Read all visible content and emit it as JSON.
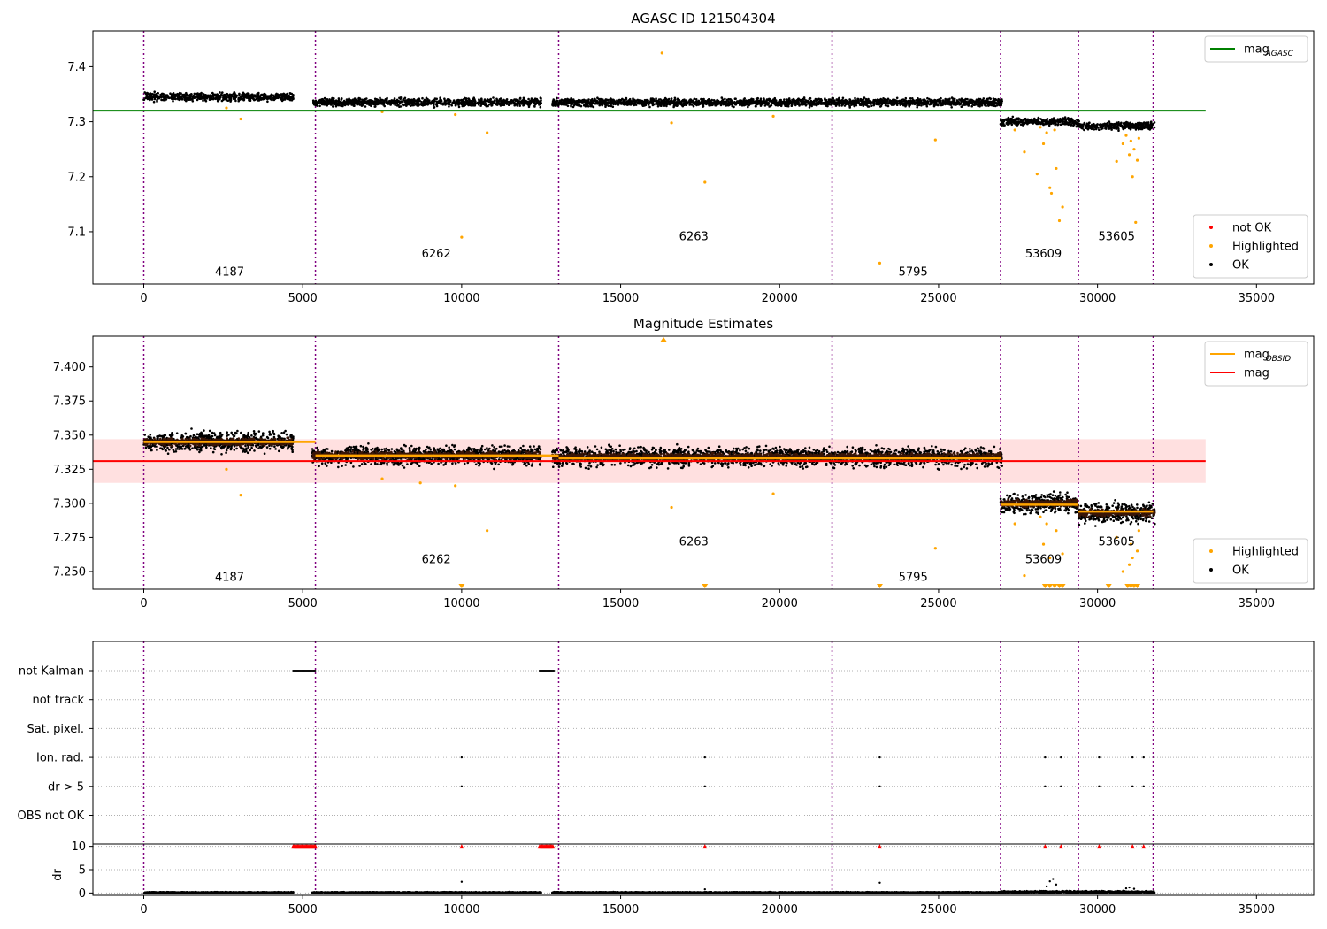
{
  "figure": {
    "title": "AGASC ID 121504304"
  },
  "chart_data": [
    {
      "type": "scatter",
      "title": "AGASC ID 121504304",
      "xlabel": "",
      "ylabel": "",
      "xlim": [
        -1600,
        36800
      ],
      "ylim": [
        7.005,
        7.465
      ],
      "xticks": [
        0,
        5000,
        10000,
        15000,
        20000,
        25000,
        30000,
        35000
      ],
      "yticks": [
        7.1,
        7.2,
        7.3,
        7.4
      ],
      "ytick_labels": [
        "7.1",
        "7.2",
        "7.3",
        "7.4"
      ],
      "obs_boundaries": [
        0,
        5400,
        13050,
        21650,
        26950,
        29400,
        31750
      ],
      "segment_labels": [
        {
          "text": "4187",
          "x": 2700,
          "y": 7.02
        },
        {
          "text": "6262",
          "x": 9200,
          "y": 7.053
        },
        {
          "text": "6263",
          "x": 17300,
          "y": 7.085
        },
        {
          "text": "5795",
          "x": 24200,
          "y": 7.02
        },
        {
          "text": "53609",
          "x": 28300,
          "y": 7.053
        },
        {
          "text": "53605",
          "x": 30600,
          "y": 7.085
        }
      ],
      "reference_line": {
        "name": "mag_AGASC",
        "value": 7.32,
        "x": [
          -1600,
          33400
        ],
        "color": "#008000"
      },
      "series": [
        {
          "name": "OK",
          "color": "#000000",
          "segments": [
            {
              "x": [
                0,
                4700
              ],
              "center": 7.345,
              "spread": 0.01
            },
            {
              "x": [
                5300,
                12500
              ],
              "center": 7.335,
              "spread": 0.01
            },
            {
              "x": [
                12850,
                21650
              ],
              "center": 7.335,
              "spread": 0.01
            },
            {
              "x": [
                21650,
                27000
              ],
              "center": 7.335,
              "spread": 0.01
            },
            {
              "x": [
                26950,
                29400
              ],
              "center": 7.3,
              "spread": 0.01
            },
            {
              "x": [
                29400,
                31800
              ],
              "center": 7.292,
              "spread": 0.01
            }
          ]
        },
        {
          "name": "Highlighted",
          "color": "#ffa500",
          "points": [
            [
              16300,
              7.425
            ],
            [
              16600,
              7.298
            ],
            [
              17650,
              7.19
            ],
            [
              10000,
              7.09
            ],
            [
              10800,
              7.28
            ],
            [
              23150,
              7.043
            ],
            [
              24900,
              7.267
            ],
            [
              3050,
              7.305
            ],
            [
              2600,
              7.325
            ],
            [
              19800,
              7.31
            ],
            [
              7500,
              7.318
            ],
            [
              9800,
              7.313
            ],
            [
              27700,
              7.245
            ],
            [
              28100,
              7.205
            ],
            [
              28300,
              7.26
            ],
            [
              28500,
              7.18
            ],
            [
              28550,
              7.17
            ],
            [
              28700,
              7.215
            ],
            [
              28800,
              7.12
            ],
            [
              28900,
              7.145
            ],
            [
              28400,
              7.28
            ],
            [
              28650,
              7.285
            ],
            [
              30600,
              7.228
            ],
            [
              31000,
              7.24
            ],
            [
              31100,
              7.2
            ],
            [
              31200,
              7.117
            ],
            [
              31150,
              7.25
            ],
            [
              30900,
              7.275
            ],
            [
              31250,
              7.23
            ],
            [
              31050,
              7.265
            ],
            [
              27400,
              7.285
            ],
            [
              28200,
              7.29
            ],
            [
              30800,
              7.26
            ],
            [
              31300,
              7.27
            ]
          ]
        },
        {
          "name": "not OK",
          "color": "#ff0000",
          "points": []
        }
      ],
      "legends": [
        {
          "position": "upper right",
          "entries": [
            {
              "label": "mag",
              "sub": "AGASC",
              "kind": "line",
              "color": "#008000"
            }
          ]
        },
        {
          "position": "lower right",
          "entries": [
            {
              "label": "not OK",
              "kind": "dot",
              "color": "#ff0000"
            },
            {
              "label": "Highlighted",
              "kind": "dot",
              "color": "#ffa500"
            },
            {
              "label": "OK",
              "kind": "dot",
              "color": "#000000"
            }
          ]
        }
      ]
    },
    {
      "type": "scatter",
      "title": "Magnitude Estimates",
      "xlabel": "",
      "ylabel": "",
      "xlim": [
        -1600,
        36800
      ],
      "ylim": [
        7.237,
        7.4225
      ],
      "xticks": [
        0,
        5000,
        10000,
        15000,
        20000,
        25000,
        30000,
        35000
      ],
      "yticks": [
        7.25,
        7.275,
        7.3,
        7.325,
        7.35,
        7.375,
        7.4
      ],
      "ytick_labels": [
        "7.250",
        "7.275",
        "7.300",
        "7.325",
        "7.350",
        "7.375",
        "7.400"
      ],
      "obs_boundaries": [
        0,
        5400,
        13050,
        21650,
        26950,
        29400,
        31750
      ],
      "segment_labels": [
        {
          "text": "4187",
          "x": 2700,
          "y": 7.243
        },
        {
          "text": "6262",
          "x": 9200,
          "y": 7.256
        },
        {
          "text": "6263",
          "x": 17300,
          "y": 7.269
        },
        {
          "text": "5795",
          "x": 24200,
          "y": 7.243
        },
        {
          "text": "53609",
          "x": 28300,
          "y": 7.256
        },
        {
          "text": "53605",
          "x": 30600,
          "y": 7.269
        }
      ],
      "mag": {
        "value": 7.331,
        "band": [
          7.315,
          7.347
        ],
        "x": [
          -1600,
          33400
        ],
        "color": "#ff0000"
      },
      "mag_obsid": [
        {
          "x": [
            0,
            5400
          ],
          "value": 7.345
        },
        {
          "x": [
            5400,
            13050
          ],
          "value": 7.335
        },
        {
          "x": [
            13050,
            21650
          ],
          "value": 7.333
        },
        {
          "x": [
            21650,
            26950
          ],
          "value": 7.333
        },
        {
          "x": [
            26950,
            29400
          ],
          "value": 7.299
        },
        {
          "x": [
            29400,
            31750
          ],
          "value": 7.294
        }
      ],
      "series": [
        {
          "name": "OK",
          "color": "#000000",
          "segments": [
            {
              "x": [
                0,
                4700
              ],
              "center": 7.345,
              "spread": 0.01
            },
            {
              "x": [
                5300,
                12500
              ],
              "center": 7.335,
              "spread": 0.01
            },
            {
              "x": [
                12850,
                21650
              ],
              "center": 7.334,
              "spread": 0.01
            },
            {
              "x": [
                21650,
                27000
              ],
              "center": 7.334,
              "spread": 0.01
            },
            {
              "x": [
                26950,
                29400
              ],
              "center": 7.3,
              "spread": 0.01
            },
            {
              "x": [
                29400,
                31800
              ],
              "center": 7.293,
              "spread": 0.01
            }
          ]
        },
        {
          "name": "Highlighted",
          "color": "#ffa500",
          "points": [
            [
              16600,
              7.297
            ],
            [
              10800,
              7.28
            ],
            [
              24900,
              7.267
            ],
            [
              3050,
              7.306
            ],
            [
              2600,
              7.325
            ],
            [
              19800,
              7.307
            ],
            [
              7500,
              7.318
            ],
            [
              9800,
              7.313
            ],
            [
              27700,
              7.247
            ],
            [
              28300,
              7.27
            ],
            [
              28500,
              7.26
            ],
            [
              28700,
              7.28
            ],
            [
              28900,
              7.263
            ],
            [
              28400,
              7.285
            ],
            [
              30600,
              7.275
            ],
            [
              31000,
              7.255
            ],
            [
              31100,
              7.26
            ],
            [
              31250,
              7.265
            ],
            [
              31050,
              7.27
            ],
            [
              27400,
              7.285
            ],
            [
              28200,
              7.29
            ],
            [
              30800,
              7.25
            ],
            [
              31300,
              7.28
            ],
            [
              8700,
              7.315
            ]
          ]
        }
      ],
      "offscale_markers": [
        {
          "x": 16350,
          "direction": "up"
        },
        {
          "x": 10000,
          "direction": "down"
        },
        {
          "x": 17650,
          "direction": "down"
        },
        {
          "x": 23150,
          "direction": "down"
        },
        {
          "x": 28350,
          "direction": "down"
        },
        {
          "x": 28500,
          "direction": "down"
        },
        {
          "x": 28650,
          "direction": "down"
        },
        {
          "x": 28800,
          "direction": "down"
        },
        {
          "x": 28900,
          "direction": "down"
        },
        {
          "x": 30350,
          "direction": "down"
        },
        {
          "x": 30950,
          "direction": "down"
        },
        {
          "x": 31050,
          "direction": "down"
        },
        {
          "x": 31150,
          "direction": "down"
        },
        {
          "x": 31250,
          "direction": "down"
        }
      ],
      "legends": [
        {
          "position": "upper right",
          "entries": [
            {
              "label": "mag",
              "sub": "OBSID",
              "kind": "line",
              "color": "#ffa500"
            },
            {
              "label": "mag",
              "sub": "",
              "kind": "line",
              "color": "#ff0000"
            }
          ]
        },
        {
          "position": "lower right",
          "entries": [
            {
              "label": "Highlighted",
              "kind": "dot",
              "color": "#ffa500"
            },
            {
              "label": "OK",
              "kind": "dot",
              "color": "#000000"
            }
          ]
        }
      ]
    },
    {
      "type": "scatter",
      "title": "",
      "xlabel": "",
      "ylabel": "",
      "xlim": [
        -1600,
        36800
      ],
      "xticks": [
        0,
        5000,
        10000,
        15000,
        20000,
        25000,
        30000,
        35000
      ],
      "obs_boundaries": [
        0,
        5400,
        13050,
        21650,
        26950,
        29400,
        31750
      ],
      "flag_rows": [
        "not Kalman",
        "not track",
        "Sat. pixel.",
        "Ion. rad.",
        "dr > 5",
        "OBS not OK"
      ],
      "flags": [
        {
          "row": "not Kalman",
          "x_ranges": [
            [
              4700,
              5400
            ],
            [
              12450,
              12900
            ]
          ],
          "x": []
        },
        {
          "row": "not track",
          "x_ranges": [],
          "x": []
        },
        {
          "row": "Sat. pixel.",
          "x_ranges": [],
          "x": []
        },
        {
          "row": "Ion. rad.",
          "x_ranges": [],
          "x": [
            10000,
            17650,
            23150,
            28350,
            28850,
            30050,
            31100,
            31450
          ]
        },
        {
          "row": "dr > 5",
          "x_ranges": [],
          "x": [
            10000,
            17650,
            23150,
            28350,
            28850,
            30050,
            31100,
            31450
          ]
        },
        {
          "row": "OBS not OK",
          "x_ranges": [],
          "x": []
        }
      ]
    },
    {
      "type": "scatter",
      "title": "",
      "xlabel": "",
      "ylabel": "dr",
      "xlim": [
        -1600,
        36800
      ],
      "ylim": [
        -0.5,
        10.5
      ],
      "xticks": [
        0,
        5000,
        10000,
        15000,
        20000,
        25000,
        30000,
        35000
      ],
      "yticks": [
        0,
        5,
        10
      ],
      "ytick_labels": [
        "0",
        "5",
        "10"
      ],
      "obs_boundaries": [
        0,
        5400,
        13050,
        21650,
        26950,
        29400,
        31750
      ],
      "clip_value": 10,
      "series": [
        {
          "name": "dr",
          "color": "#000000",
          "segments": [
            {
              "x": [
                0,
                4700
              ],
              "center": 0.1,
              "spread": 0.15
            },
            {
              "x": [
                5300,
                12500
              ],
              "center": 0.1,
              "spread": 0.15
            },
            {
              "x": [
                12850,
                27000
              ],
              "center": 0.1,
              "spread": 0.15
            },
            {
              "x": [
                26950,
                31800
              ],
              "center": 0.2,
              "spread": 0.3
            }
          ],
          "points": [
            [
              10000,
              2.4
            ],
            [
              23150,
              2.2
            ],
            [
              17650,
              0.8
            ],
            [
              28500,
              2.5
            ],
            [
              28600,
              3.0
            ],
            [
              28700,
              1.8
            ],
            [
              28400,
              1.4
            ],
            [
              31000,
              1.2
            ],
            [
              31150,
              0.9
            ],
            [
              30900,
              1.0
            ]
          ]
        },
        {
          "name": "clipped",
          "color": "#ff0000",
          "x_ranges": [
            [
              4700,
              5400
            ],
            [
              12450,
              12900
            ]
          ],
          "x": [
            10000,
            17650,
            23150,
            28350,
            28850,
            30050,
            31100,
            31450
          ]
        }
      ]
    }
  ]
}
